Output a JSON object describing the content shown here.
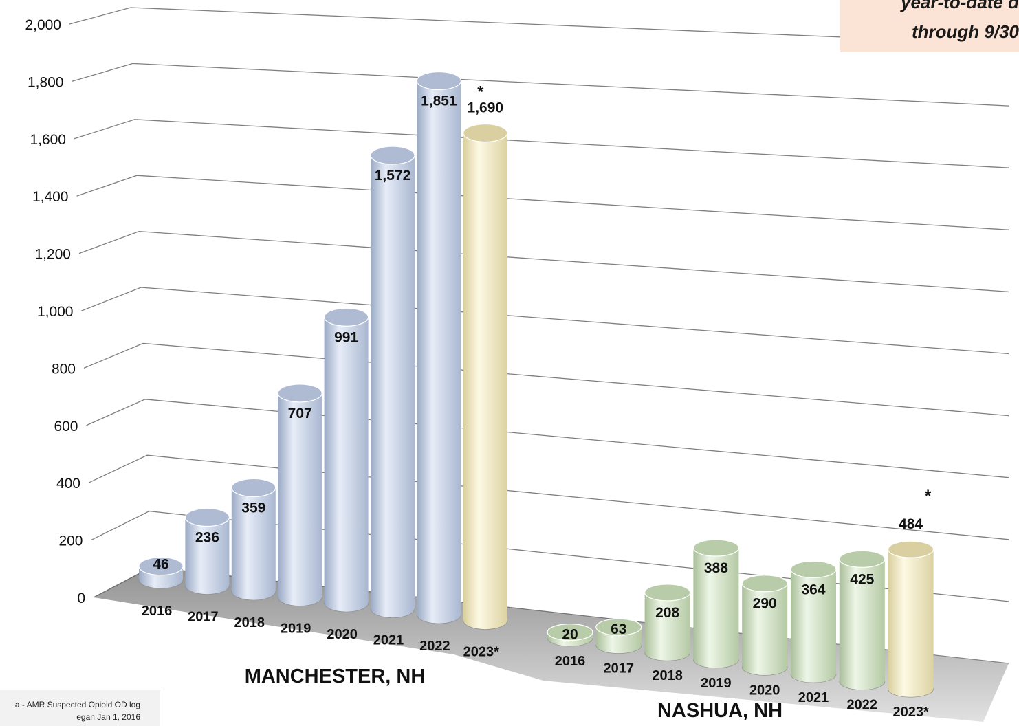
{
  "note": {
    "line1": "year-to-date d",
    "line2": "through 9/30"
  },
  "source": {
    "line1": "a - AMR Suspected Opioid OD log",
    "line2": "egan Jan 1, 2016"
  },
  "colors": {
    "blue_bar": "#c9d5ea",
    "green_bar": "#d6e6c8",
    "highlight_bar": "#f3ecc4",
    "gridline": "#7f7f7f",
    "floor": "#555555",
    "note_background": "#fbe3d6"
  },
  "chart_data": {
    "type": "bar",
    "style": "3d-cylinder",
    "ylim": [
      0,
      2000
    ],
    "yticks": [
      "0",
      "200",
      "400",
      "600",
      "800",
      "1,000",
      "1,200",
      "1,400",
      "1,600",
      "1,800",
      "2,000"
    ],
    "grid": true,
    "groups": [
      {
        "name": "MANCHESTER, NH",
        "categories": [
          "2016",
          "2017",
          "2018",
          "2019",
          "2020",
          "2021",
          "2022",
          "2023*"
        ],
        "values": [
          46,
          236,
          359,
          707,
          991,
          1572,
          1851,
          1690
        ],
        "labels": [
          "46",
          "236",
          "359",
          "707",
          "991",
          "1,572",
          "1,851",
          "1,690"
        ],
        "highlight_index": 7,
        "asterisk": "*"
      },
      {
        "name": "NASHUA, NH",
        "categories": [
          "2016",
          "2017",
          "2018",
          "2019",
          "2020",
          "2021",
          "2022",
          "2023*"
        ],
        "values": [
          20,
          63,
          208,
          388,
          290,
          364,
          425,
          484
        ],
        "labels": [
          "20",
          "63",
          "208",
          "388",
          "290",
          "364",
          "425",
          "484"
        ],
        "highlight_index": 7,
        "asterisk": "*"
      }
    ]
  }
}
